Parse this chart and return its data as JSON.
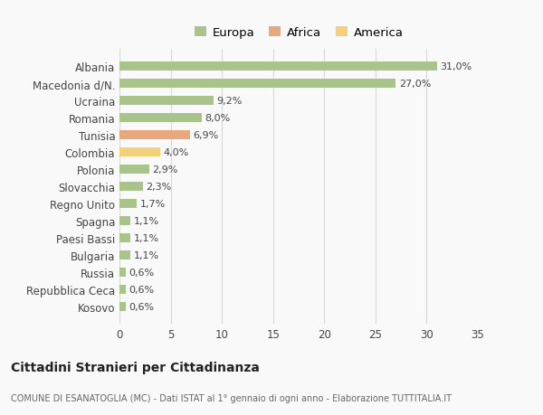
{
  "categories": [
    "Albania",
    "Macedonia d/N.",
    "Ucraina",
    "Romania",
    "Tunisia",
    "Colombia",
    "Polonia",
    "Slovacchia",
    "Regno Unito",
    "Spagna",
    "Paesi Bassi",
    "Bulgaria",
    "Russia",
    "Repubblica Ceca",
    "Kosovo"
  ],
  "values": [
    31.0,
    27.0,
    9.2,
    8.0,
    6.9,
    4.0,
    2.9,
    2.3,
    1.7,
    1.1,
    1.1,
    1.1,
    0.6,
    0.6,
    0.6
  ],
  "labels": [
    "31,0%",
    "27,0%",
    "9,2%",
    "8,0%",
    "6,9%",
    "4,0%",
    "2,9%",
    "2,3%",
    "1,7%",
    "1,1%",
    "1,1%",
    "1,1%",
    "0,6%",
    "0,6%",
    "0,6%"
  ],
  "colors": [
    "#a8c48a",
    "#a8c48a",
    "#a8c48a",
    "#a8c48a",
    "#e8a87c",
    "#f5d07a",
    "#a8c48a",
    "#a8c48a",
    "#a8c48a",
    "#a8c48a",
    "#a8c48a",
    "#a8c48a",
    "#a8c48a",
    "#a8c48a",
    "#a8c48a"
  ],
  "legend_labels": [
    "Europa",
    "Africa",
    "America"
  ],
  "legend_colors": [
    "#a8c48a",
    "#e8a87c",
    "#f5d07a"
  ],
  "xlim": [
    0,
    35
  ],
  "xticks": [
    0,
    5,
    10,
    15,
    20,
    25,
    30,
    35
  ],
  "title": "Cittadini Stranieri per Cittadinanza",
  "subtitle": "COMUNE DI ESANATOGLIA (MC) - Dati ISTAT al 1° gennaio di ogni anno - Elaborazione TUTTITALIA.IT",
  "background_color": "#f9f9f9",
  "grid_color": "#d8d8d8"
}
